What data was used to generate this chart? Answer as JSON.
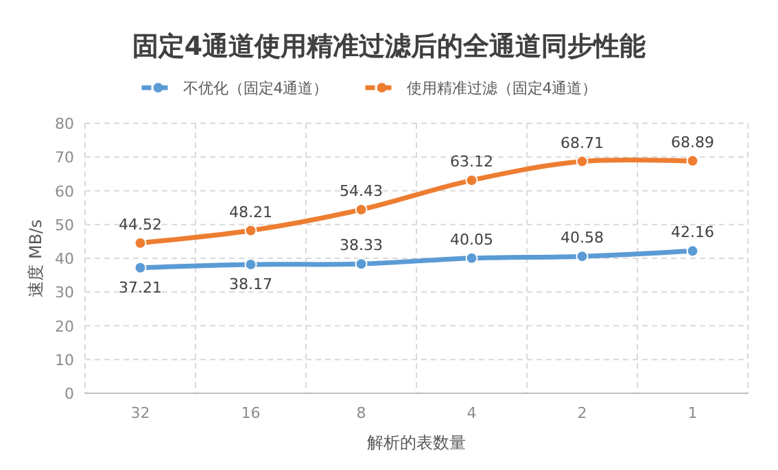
{
  "chart_data": {
    "type": "line",
    "title": "固定4通道使用精准过滤后的全通道同步性能",
    "xlabel": "解析的表数量",
    "ylabel": "速度 MB/s",
    "categories": [
      "32",
      "16",
      "8",
      "4",
      "2",
      "1"
    ],
    "series": [
      {
        "name": "不优化（固定4通道）",
        "color": "#5b9bd5",
        "values": [
          37.21,
          38.17,
          38.33,
          40.05,
          40.58,
          42.16
        ]
      },
      {
        "name": "使用精准过滤（固定4通道）",
        "color": "#ed7d31",
        "values": [
          44.52,
          48.21,
          54.43,
          63.12,
          68.71,
          68.89
        ]
      }
    ],
    "ylim": [
      0,
      80
    ],
    "yticks": [
      0,
      10,
      20,
      30,
      40,
      50,
      60,
      70,
      80
    ],
    "grid": true,
    "legend": "top",
    "marker": "circle",
    "data_labels": true
  }
}
